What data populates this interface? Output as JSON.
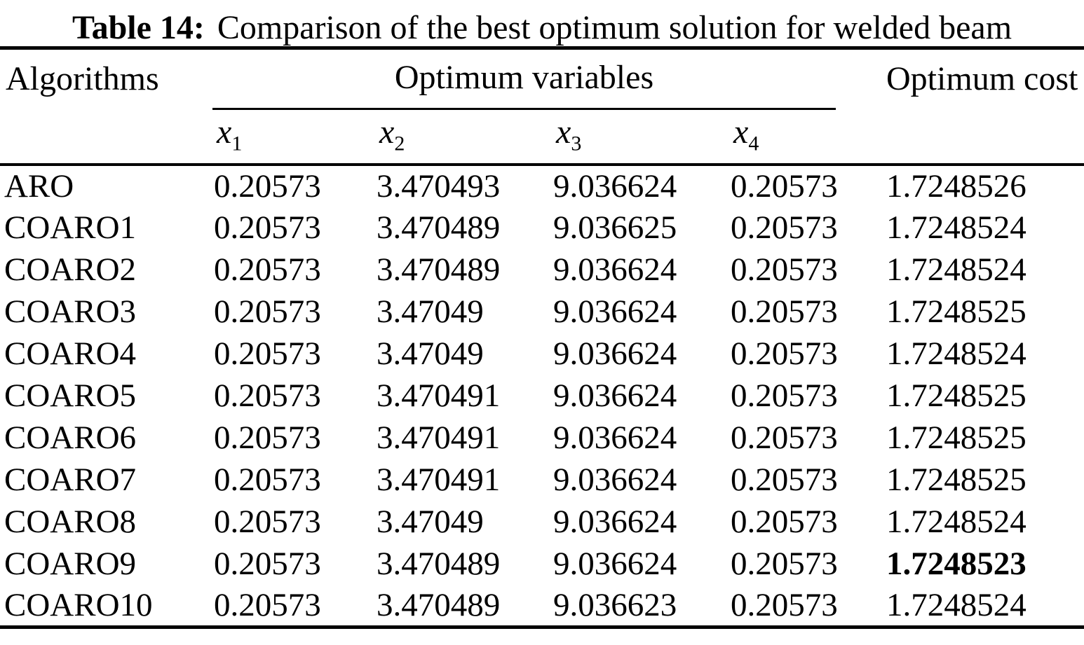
{
  "title": {
    "label": "Table 14:",
    "text": "Comparison of the best optimum solution for welded beam"
  },
  "table": {
    "headers": {
      "algorithms": "Algorithms",
      "group": "Optimum variables",
      "cost": "Optimum cost"
    },
    "sub_headers": [
      {
        "base": "x",
        "sub": "1"
      },
      {
        "base": "x",
        "sub": "2"
      },
      {
        "base": "x",
        "sub": "3"
      },
      {
        "base": "x",
        "sub": "4"
      }
    ],
    "rows": [
      {
        "algorithm": "ARO",
        "x1": "0.20573",
        "x2": "3.470493",
        "x3": "9.036624",
        "x4": "0.20573",
        "cost": "1.7248526",
        "cost_bold": false
      },
      {
        "algorithm": "COARO1",
        "x1": "0.20573",
        "x2": "3.470489",
        "x3": "9.036625",
        "x4": "0.20573",
        "cost": "1.7248524",
        "cost_bold": false
      },
      {
        "algorithm": "COARO2",
        "x1": "0.20573",
        "x2": "3.470489",
        "x3": "9.036624",
        "x4": "0.20573",
        "cost": "1.7248524",
        "cost_bold": false
      },
      {
        "algorithm": "COARO3",
        "x1": "0.20573",
        "x2": "3.47049",
        "x3": "9.036624",
        "x4": "0.20573",
        "cost": "1.7248525",
        "cost_bold": false
      },
      {
        "algorithm": "COARO4",
        "x1": "0.20573",
        "x2": "3.47049",
        "x3": "9.036624",
        "x4": "0.20573",
        "cost": "1.7248524",
        "cost_bold": false
      },
      {
        "algorithm": "COARO5",
        "x1": "0.20573",
        "x2": "3.470491",
        "x3": "9.036624",
        "x4": "0.20573",
        "cost": "1.7248525",
        "cost_bold": false
      },
      {
        "algorithm": "COARO6",
        "x1": "0.20573",
        "x2": "3.470491",
        "x3": "9.036624",
        "x4": "0.20573",
        "cost": "1.7248525",
        "cost_bold": false
      },
      {
        "algorithm": "COARO7",
        "x1": "0.20573",
        "x2": "3.470491",
        "x3": "9.036624",
        "x4": "0.20573",
        "cost": "1.7248525",
        "cost_bold": false
      },
      {
        "algorithm": "COARO8",
        "x1": "0.20573",
        "x2": "3.47049",
        "x3": "9.036624",
        "x4": "0.20573",
        "cost": "1.7248524",
        "cost_bold": false
      },
      {
        "algorithm": "COARO9",
        "x1": "0.20573",
        "x2": "3.470489",
        "x3": "9.036624",
        "x4": "0.20573",
        "cost": "1.7248523",
        "cost_bold": true
      },
      {
        "algorithm": "COARO10",
        "x1": "0.20573",
        "x2": "3.470489",
        "x3": "9.036623",
        "x4": "0.20573",
        "cost": "1.7248524",
        "cost_bold": false
      }
    ]
  },
  "colors": {
    "text": "#000000",
    "background": "#ffffff",
    "rule": "#000000"
  }
}
